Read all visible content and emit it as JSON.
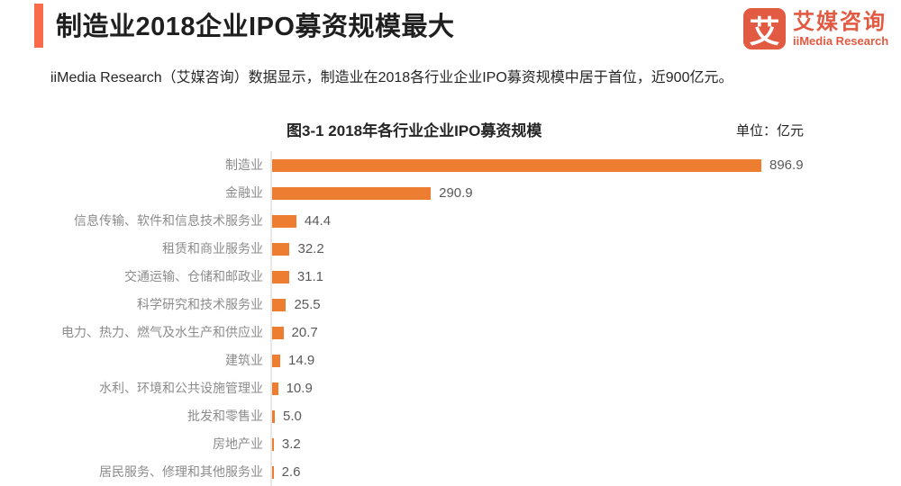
{
  "header": {
    "title": "制造业2018企业IPO募资规模最大"
  },
  "logo": {
    "mark": "艾",
    "name_cn": "艾媒咨询",
    "name_en": "iiMedia Research"
  },
  "summary": "iiMedia Research（艾媒咨询）数据显示，制造业在2018各行业企业IPO募资规模中居于首位，近900亿元。",
  "colors": {
    "bar": "#ED7D31",
    "title_accent": "#FA6B4B",
    "logo": "#E25A41",
    "category_label": "#8c8c8c",
    "value_label": "#595959"
  },
  "chart_data": {
    "type": "bar",
    "orientation": "horizontal",
    "title": "图3-1 2018年各行业企业IPO募资规模",
    "unit_label": "单位：亿元",
    "categories": [
      "制造业",
      "金融业",
      "信息传输、软件和信息技术服务业",
      "租赁和商业服务业",
      "交通运输、仓储和邮政业",
      "科学研究和技术服务业",
      "电力、热力、燃气及水生产和供应业",
      "建筑业",
      "水利、环境和公共设施管理业",
      "批发和零售业",
      "房地产业",
      "居民服务、修理和其他服务业"
    ],
    "values": [
      896.9,
      290.9,
      44.4,
      32.2,
      31.1,
      25.5,
      20.7,
      14.9,
      10.9,
      5.0,
      3.2,
      2.6
    ],
    "value_labels": [
      "896.9",
      "290.9",
      "44.4",
      "32.2",
      "31.1",
      "25.5",
      "20.7",
      "14.9",
      "10.9",
      "5.0",
      "3.2",
      "2.6"
    ],
    "xlim": [
      0,
      950
    ],
    "grid": false,
    "data_labels": true,
    "bar_color": "#ED7D31",
    "legend": null
  }
}
